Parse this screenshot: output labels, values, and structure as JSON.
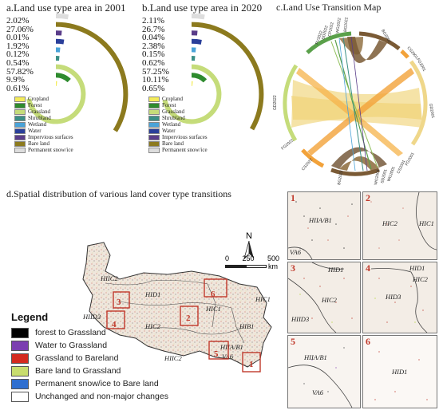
{
  "colors": {
    "cropland": "#f4ec5a",
    "forest": "#2e8b2e",
    "grassland": "#c5dc7a",
    "shrubland": "#3b8f86",
    "wetland": "#4aa3d8",
    "water": "#2a3f9a",
    "impervious": "#5a3d8a",
    "bareland": "#8c7a1e",
    "snow": "#dddddd",
    "forest_to_grassland": "#000000",
    "water_to_grassland": "#7b3fb0",
    "grassland_to_bareland": "#d42a1e",
    "bareland_to_grassland": "#c8dd6e",
    "snow_to_bareland": "#2f6fd0",
    "unchanged": "#ffffff",
    "box_red": "#c0392b"
  },
  "panel_a": {
    "title": "a.Land use type area in 2001",
    "percents": [
      "2.02%",
      "27.06%",
      "0.01%",
      "1.92%",
      "0.12%",
      "0.54%",
      "57.82%",
      "9.9%",
      "0.61%"
    ]
  },
  "panel_b": {
    "title": "b.Land use type area in 2020",
    "percents": [
      "2.11%",
      "26.7%",
      "0.04%",
      "2.38%",
      "0.15%",
      "0.62%",
      "57.25%",
      "10.11%",
      "0.65%"
    ]
  },
  "land_legend": [
    "Cropland",
    "Forest",
    "Grassland",
    "Shrubland",
    "Wetland",
    "Water",
    "Impervious surfaces",
    "Bare land",
    "Permanent snow/ice"
  ],
  "panel_c": {
    "title": "c.Land Use Transition Map",
    "labels": [
      "BG2001",
      "CS2001",
      "FG2001",
      "GD2001",
      "FG2001",
      "CS2001",
      "WG2001",
      "SD2001",
      "WG2001",
      "BG2022",
      "CS2022",
      "FG2022",
      "GD2022",
      "PV2022",
      "SD2022",
      "CP2022",
      "WG2022",
      "BG2022"
    ]
  },
  "panel_d": {
    "title": "d.Spatial distribution of various land cover type transitions",
    "north": "N",
    "scale": [
      "0",
      "250",
      "500",
      "km"
    ],
    "zones": [
      "HIIC2",
      "HID1",
      "HIC1",
      "HIC2",
      "HIID3",
      "HIB1",
      "HIC1",
      "HIIC2",
      "HIIA/B1",
      "VA6"
    ],
    "box_numbers": [
      "6",
      "2",
      "4",
      "3",
      "5",
      "1"
    ]
  },
  "legend": {
    "title": "Legend",
    "items": [
      "forest to Grassland",
      "Water  to Grassland",
      "Grassland to Bareland",
      "Bare land to Grassland",
      "Permanent snow/ice to Bare land",
      "Unchanged and non-major changes"
    ]
  },
  "insets": [
    {
      "num": "1",
      "labels": [
        "HIIA/B1",
        "VA6"
      ]
    },
    {
      "num": "2",
      "labels": [
        "HIC2",
        "HIC1"
      ]
    },
    {
      "num": "3",
      "labels": [
        "HID1",
        "HIC2",
        "HIID3"
      ]
    },
    {
      "num": "4",
      "labels": [
        "HID1",
        "HIC2",
        "HID3"
      ]
    },
    {
      "num": "5",
      "labels": [
        "HIIA/B1",
        "VA6"
      ]
    },
    {
      "num": "6",
      "labels": [
        "HID1"
      ]
    }
  ]
}
